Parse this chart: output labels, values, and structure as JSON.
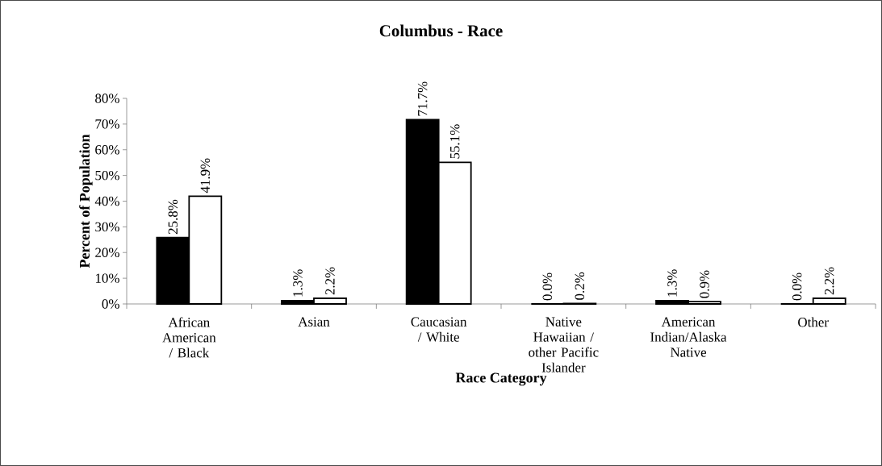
{
  "chart_data": {
    "type": "bar",
    "title": "Columbus - Race",
    "xlabel": "Race Category",
    "ylabel": "Percent of Population",
    "categories": [
      "African American / Black",
      "Asian",
      "Caucasian / White",
      "Native Hawaiian / other Pacific Islander",
      "American Indian/Alaska Native",
      "Other"
    ],
    "series": [
      {
        "color": "#000000",
        "values": [
          25.8,
          1.3,
          71.7,
          0.0,
          1.3,
          0.0
        ],
        "value_labels": [
          "25.8%",
          "1.3%",
          "71.7%",
          "0.0%",
          "1.3%",
          "0.0%"
        ]
      },
      {
        "color": "#ffffff",
        "values": [
          41.9,
          2.2,
          55.1,
          0.2,
          0.9,
          2.2
        ],
        "value_labels": [
          "41.9%",
          "2.2%",
          "55.1%",
          "0.2%",
          "0.9%",
          "2.2%"
        ]
      }
    ],
    "ylim": [
      0,
      80
    ],
    "yticks": [
      {
        "value": 0,
        "label": "0%"
      },
      {
        "value": 10,
        "label": "10%"
      },
      {
        "value": 20,
        "label": "20%"
      },
      {
        "value": 30,
        "label": "30%"
      },
      {
        "value": 40,
        "label": "40%"
      },
      {
        "value": 50,
        "label": "50%"
      },
      {
        "value": 60,
        "label": "60%"
      },
      {
        "value": 70,
        "label": "70%"
      },
      {
        "value": 80,
        "label": "80%"
      }
    ]
  }
}
